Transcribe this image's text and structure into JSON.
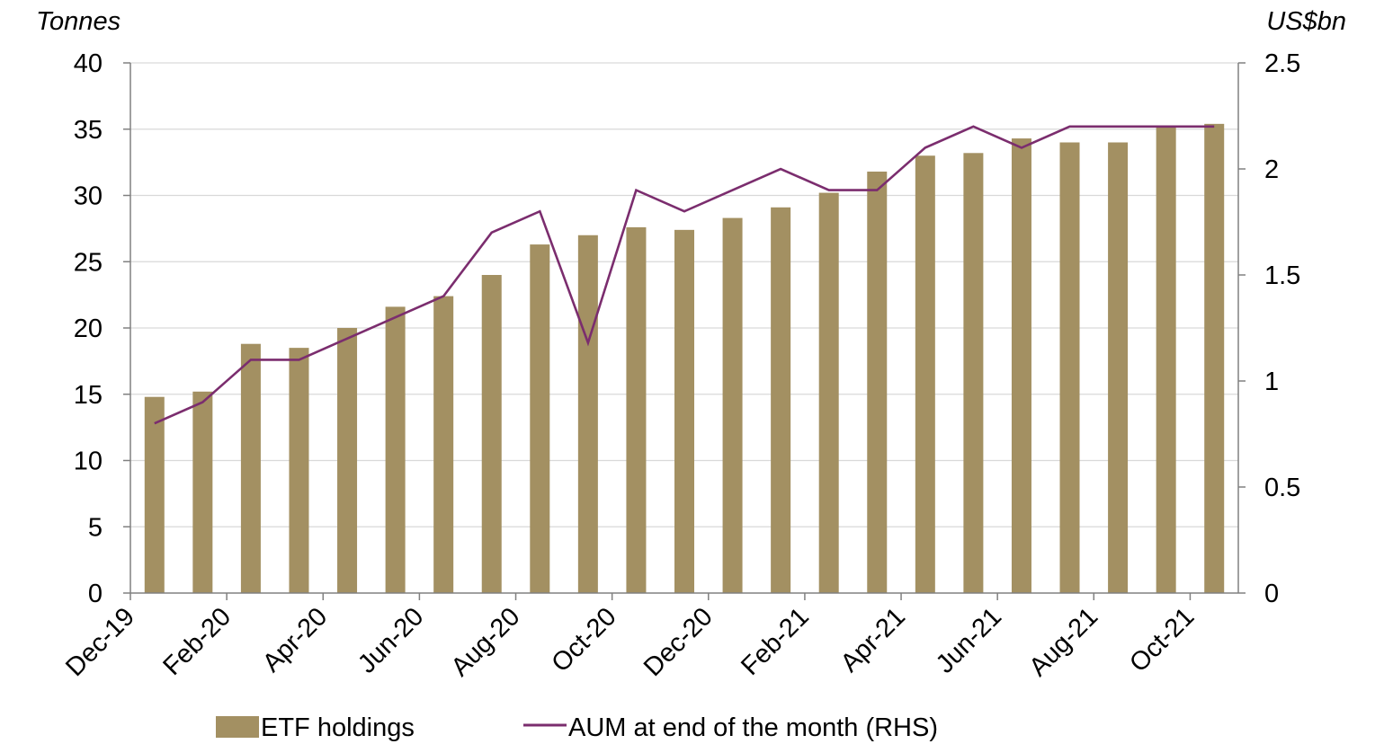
{
  "chart_data": {
    "type": "bar",
    "categories": [
      "Dec-19",
      "Jan-20",
      "Feb-20",
      "Mar-20",
      "Apr-20",
      "May-20",
      "Jun-20",
      "Jul-20",
      "Aug-20",
      "Sep-20",
      "Oct-20",
      "Nov-20",
      "Dec-20",
      "Jan-21",
      "Feb-21",
      "Mar-21",
      "Apr-21",
      "May-21",
      "Jun-21",
      "Jul-21",
      "Aug-21",
      "Sep-21",
      "Oct-21"
    ],
    "x_tick_labels": [
      "Dec-19",
      "Feb-20",
      "Apr-20",
      "Jun-20",
      "Aug-20",
      "Oct-20",
      "Dec-20",
      "Feb-21",
      "Apr-21",
      "Jun-21",
      "Aug-21",
      "Oct-21"
    ],
    "series": [
      {
        "name": "ETF holdings",
        "type": "bar",
        "axis": "left",
        "color": "#a39062",
        "values": [
          14.8,
          15.2,
          18.8,
          18.5,
          20.0,
          21.6,
          22.4,
          24.0,
          26.3,
          27.0,
          27.6,
          27.4,
          28.3,
          29.1,
          30.2,
          31.8,
          33.0,
          33.2,
          34.3,
          34.0,
          34.0,
          35.2,
          35.4
        ]
      },
      {
        "name": "AUM at end of the month (RHS)",
        "type": "line",
        "axis": "right",
        "color": "#7b2d6e",
        "values": [
          0.8,
          0.9,
          1.1,
          1.1,
          1.2,
          1.3,
          1.4,
          1.7,
          1.8,
          1.18,
          1.9,
          1.8,
          1.9,
          2.0,
          1.9,
          1.9,
          2.1,
          2.2,
          2.1,
          2.2,
          2.2,
          2.2,
          2.2
        ]
      }
    ],
    "ylabel": "Tonnes",
    "y2label": "US$bn",
    "ylim": [
      0,
      40
    ],
    "y2lim": [
      0,
      2.5
    ],
    "yticks": [
      "0",
      "5",
      "10",
      "15",
      "20",
      "25",
      "30",
      "35",
      "40"
    ],
    "y2ticks": [
      "0",
      "0.5",
      "1",
      "1.5",
      "2",
      "2.5"
    ],
    "grid": true,
    "legend_position": "bottom"
  }
}
